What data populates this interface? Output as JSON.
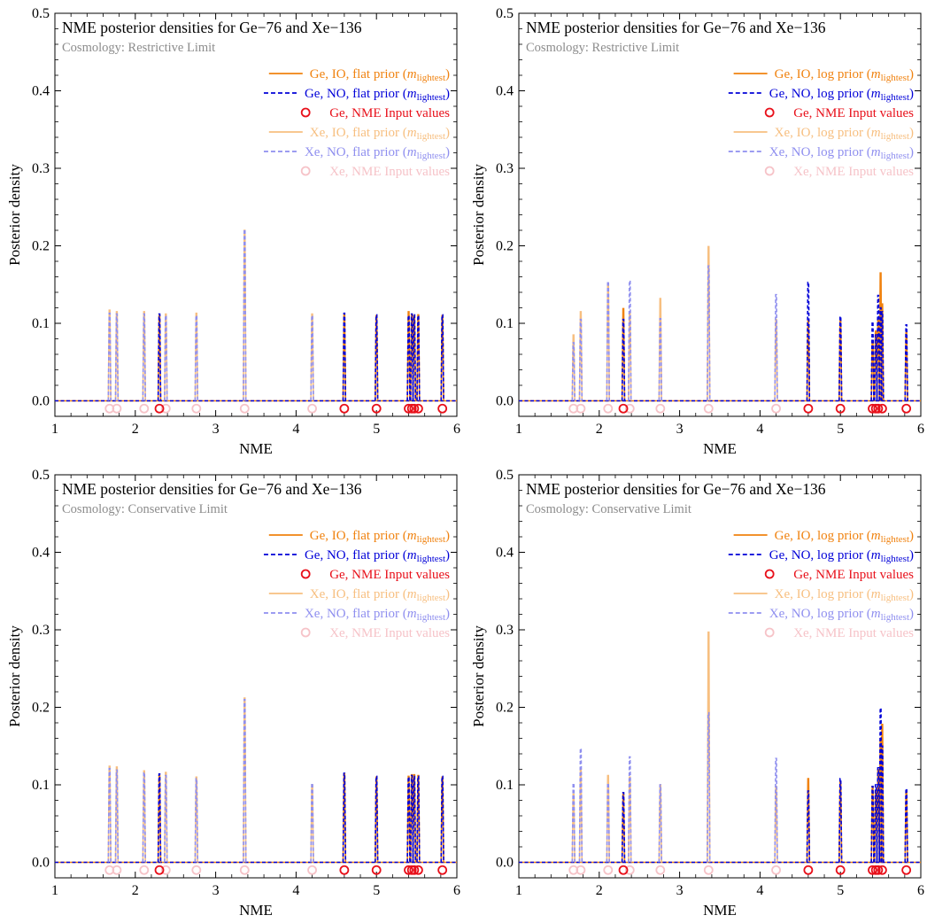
{
  "colors": {
    "ge_io": "#f0820f",
    "ge_no": "#0000d8",
    "ge_input": "#e8101a",
    "xe_io": "#f7bf80",
    "xe_no": "#8f8fef",
    "xe_input": "#f6c3c8",
    "subtitle": "#8c8c8c"
  },
  "chart_data": [
    {
      "type": "line",
      "title": "NME posterior densities for Ge−76 and Xe−136",
      "subtitle": "Cosmology: Restrictive Limit",
      "xlabel": "NME",
      "ylabel": "Posterior density",
      "xlim": [
        1,
        6
      ],
      "ylim": [
        -0.02,
        0.5
      ],
      "xticks": [
        "1",
        "2",
        "3",
        "4",
        "5",
        "6"
      ],
      "yticks": [
        "0.0",
        "0.1",
        "0.2",
        "0.3",
        "0.4",
        "0.5"
      ],
      "legend_position": "top-right",
      "legend": [
        {
          "text": "Ge, IO, flat prior (",
          "sym": "m",
          "sub": "lightest",
          "close": ")",
          "kind": "solid",
          "color": "#f0820f"
        },
        {
          "text": "Ge, NO, flat prior (",
          "sym": "m",
          "sub": "lightest",
          "close": ")",
          "kind": "dash",
          "color": "#0000d8"
        },
        {
          "text": "Ge, NME Input values",
          "sym": "",
          "sub": "",
          "close": "",
          "kind": "circle",
          "color": "#e8101a"
        },
        {
          "text": "Xe, IO, flat prior (",
          "sym": "m",
          "sub": "lightest",
          "close": ")",
          "kind": "solid",
          "color": "#f7bf80"
        },
        {
          "text": "Xe, NO, flat prior (",
          "sym": "m",
          "sub": "lightest",
          "close": ")",
          "kind": "dash",
          "color": "#8f8fef"
        },
        {
          "text": "Xe, NME Input values",
          "sym": "",
          "sub": "",
          "close": "",
          "kind": "circle",
          "color": "#f6c3c8"
        }
      ],
      "series": [
        {
          "name": "Xe, IO, flat prior",
          "x": [
            1.68,
            1.77,
            2.11,
            2.38,
            2.76,
            3.36,
            4.2
          ],
          "y": [
            0.117,
            0.115,
            0.115,
            0.112,
            0.113,
            0.22,
            0.112
          ]
        },
        {
          "name": "Xe, NO, flat prior",
          "x": [
            1.68,
            1.77,
            2.11,
            2.38,
            2.76,
            3.36,
            4.2
          ],
          "y": [
            0.113,
            0.112,
            0.112,
            0.11,
            0.11,
            0.221,
            0.11
          ]
        },
        {
          "name": "Ge, IO, flat prior",
          "x": [
            2.3,
            4.6,
            5.0,
            5.4,
            5.44,
            5.47,
            5.52,
            5.82
          ],
          "y": [
            0.11,
            0.111,
            0.11,
            0.115,
            0.111,
            0.11,
            0.111,
            0.11
          ]
        },
        {
          "name": "Ge, NO, flat prior",
          "x": [
            2.3,
            4.6,
            5.0,
            5.4,
            5.44,
            5.47,
            5.52,
            5.82
          ],
          "y": [
            0.112,
            0.113,
            0.111,
            0.11,
            0.112,
            0.111,
            0.11,
            0.111
          ]
        }
      ],
      "inputs": {
        "Ge": [
          2.3,
          4.6,
          5.0,
          5.4,
          5.44,
          5.47,
          5.52,
          5.82
        ],
        "Xe": [
          1.68,
          1.77,
          2.11,
          2.38,
          2.76,
          3.36,
          4.2
        ],
        "y": -0.01
      }
    },
    {
      "type": "line",
      "title": "NME posterior densities for Ge−76 and Xe−136",
      "subtitle": "Cosmology: Restrictive Limit",
      "xlabel": "NME",
      "ylabel": "Posterior density",
      "xlim": [
        1,
        6
      ],
      "ylim": [
        -0.02,
        0.5
      ],
      "xticks": [
        "1",
        "2",
        "3",
        "4",
        "5",
        "6"
      ],
      "yticks": [
        "0.0",
        "0.1",
        "0.2",
        "0.3",
        "0.4",
        "0.5"
      ],
      "legend_position": "top-right",
      "legend": [
        {
          "text": "Ge, IO, log prior (",
          "sym": "m",
          "sub": "lightest",
          "close": ")",
          "kind": "solid",
          "color": "#f0820f"
        },
        {
          "text": "Ge, NO, log prior (",
          "sym": "m",
          "sub": "lightest",
          "close": ")",
          "kind": "dash",
          "color": "#0000d8"
        },
        {
          "text": "Ge, NME Input values",
          "sym": "",
          "sub": "",
          "close": "",
          "kind": "circle",
          "color": "#e8101a"
        },
        {
          "text": "Xe, IO, log prior (",
          "sym": "m",
          "sub": "lightest",
          "close": ")",
          "kind": "solid",
          "color": "#f7bf80"
        },
        {
          "text": "Xe, NO, log prior (",
          "sym": "m",
          "sub": "lightest",
          "close": ")",
          "kind": "dash",
          "color": "#8f8fef"
        },
        {
          "text": "Xe, NME Input values",
          "sym": "",
          "sub": "",
          "close": "",
          "kind": "circle",
          "color": "#f6c3c8"
        }
      ],
      "series": [
        {
          "name": "Xe, IO, log prior",
          "x": [
            1.68,
            1.77,
            2.11,
            2.38,
            2.76,
            3.36,
            4.2
          ],
          "y": [
            0.085,
            0.115,
            0.152,
            0.115,
            0.132,
            0.199,
            0.105
          ]
        },
        {
          "name": "Xe, NO, log prior",
          "x": [
            1.68,
            1.77,
            2.11,
            2.38,
            2.76,
            3.36,
            4.2
          ],
          "y": [
            0.075,
            0.105,
            0.154,
            0.155,
            0.106,
            0.174,
            0.137
          ]
        },
        {
          "name": "Ge, IO, log prior",
          "x": [
            2.3,
            4.6,
            5.0,
            5.4,
            5.44,
            5.47,
            5.5,
            5.52,
            5.82
          ],
          "y": [
            0.119,
            0.103,
            0.103,
            0.078,
            0.09,
            0.105,
            0.165,
            0.125,
            0.088
          ]
        },
        {
          "name": "Ge, NO, log prior",
          "x": [
            2.3,
            4.6,
            5.0,
            5.4,
            5.44,
            5.47,
            5.5,
            5.52,
            5.82
          ],
          "y": [
            0.105,
            0.153,
            0.109,
            0.102,
            0.085,
            0.136,
            0.12,
            0.115,
            0.098
          ]
        }
      ],
      "inputs": {
        "Ge": [
          2.3,
          4.6,
          5.0,
          5.4,
          5.44,
          5.47,
          5.52,
          5.82
        ],
        "Xe": [
          1.68,
          1.77,
          2.11,
          2.38,
          2.76,
          3.36,
          4.2
        ],
        "y": -0.01
      }
    },
    {
      "type": "line",
      "title": "NME posterior densities for Ge−76 and Xe−136",
      "subtitle": "Cosmology: Conservative Limit",
      "xlabel": "NME",
      "ylabel": "Posterior density",
      "xlim": [
        1,
        6
      ],
      "ylim": [
        -0.02,
        0.5
      ],
      "xticks": [
        "1",
        "2",
        "3",
        "4",
        "5",
        "6"
      ],
      "yticks": [
        "0.0",
        "0.1",
        "0.2",
        "0.3",
        "0.4",
        "0.5"
      ],
      "legend_position": "top-right",
      "legend": [
        {
          "text": "Ge, IO, flat prior (",
          "sym": "m",
          "sub": "lightest",
          "close": ")",
          "kind": "solid",
          "color": "#f0820f"
        },
        {
          "text": "Ge, NO, flat prior (",
          "sym": "m",
          "sub": "lightest",
          "close": ")",
          "kind": "dash",
          "color": "#0000d8"
        },
        {
          "text": "Ge, NME Input values",
          "sym": "",
          "sub": "",
          "close": "",
          "kind": "circle",
          "color": "#e8101a"
        },
        {
          "text": "Xe, IO, flat prior (",
          "sym": "m",
          "sub": "lightest",
          "close": ")",
          "kind": "solid",
          "color": "#f7bf80"
        },
        {
          "text": "Xe, NO, flat prior (",
          "sym": "m",
          "sub": "lightest",
          "close": ")",
          "kind": "dash",
          "color": "#8f8fef"
        },
        {
          "text": "Xe, NME Input values",
          "sym": "",
          "sub": "",
          "close": "",
          "kind": "circle",
          "color": "#f6c3c8"
        }
      ],
      "series": [
        {
          "name": "Xe, IO, flat prior",
          "x": [
            1.68,
            1.77,
            2.11,
            2.38,
            2.76,
            3.36,
            4.2
          ],
          "y": [
            0.124,
            0.123,
            0.118,
            0.116,
            0.11,
            0.212,
            0.1
          ]
        },
        {
          "name": "Xe, NO, flat prior",
          "x": [
            1.68,
            1.77,
            2.11,
            2.38,
            2.76,
            3.36,
            4.2
          ],
          "y": [
            0.121,
            0.119,
            0.116,
            0.112,
            0.108,
            0.21,
            0.102
          ]
        },
        {
          "name": "Ge, IO, flat prior",
          "x": [
            2.3,
            4.6,
            5.0,
            5.4,
            5.44,
            5.47,
            5.52,
            5.82
          ],
          "y": [
            0.112,
            0.114,
            0.11,
            0.111,
            0.113,
            0.113,
            0.112,
            0.11
          ]
        },
        {
          "name": "Ge, NO, flat prior",
          "x": [
            2.3,
            4.6,
            5.0,
            5.4,
            5.44,
            5.47,
            5.52,
            5.82
          ],
          "y": [
            0.114,
            0.115,
            0.111,
            0.11,
            0.112,
            0.111,
            0.111,
            0.111
          ]
        }
      ],
      "inputs": {
        "Ge": [
          2.3,
          4.6,
          5.0,
          5.4,
          5.44,
          5.47,
          5.52,
          5.82
        ],
        "Xe": [
          1.68,
          1.77,
          2.11,
          2.38,
          2.76,
          3.36,
          4.2
        ],
        "y": -0.01
      }
    },
    {
      "type": "line",
      "title": "NME posterior densities for Ge−76 and Xe−136",
      "subtitle": "Cosmology: Conservative Limit",
      "xlabel": "NME",
      "ylabel": "Posterior density",
      "xlim": [
        1,
        6
      ],
      "ylim": [
        -0.02,
        0.5
      ],
      "xticks": [
        "1",
        "2",
        "3",
        "4",
        "5",
        "6"
      ],
      "yticks": [
        "0.0",
        "0.1",
        "0.2",
        "0.3",
        "0.4",
        "0.5"
      ],
      "legend_position": "top-right",
      "legend": [
        {
          "text": "Ge, IO, log prior (",
          "sym": "m",
          "sub": "lightest",
          "close": ")",
          "kind": "solid",
          "color": "#f0820f"
        },
        {
          "text": "Ge, NO, log prior (",
          "sym": "m",
          "sub": "lightest",
          "close": ")",
          "kind": "dash",
          "color": "#0000d8"
        },
        {
          "text": "Ge, NME Input values",
          "sym": "",
          "sub": "",
          "close": "",
          "kind": "circle",
          "color": "#e8101a"
        },
        {
          "text": "Xe, IO, log prior (",
          "sym": "m",
          "sub": "lightest",
          "close": ")",
          "kind": "solid",
          "color": "#f7bf80"
        },
        {
          "text": "Xe, NO, log prior (",
          "sym": "m",
          "sub": "lightest",
          "close": ")",
          "kind": "dash",
          "color": "#8f8fef"
        },
        {
          "text": "Xe, NME Input values",
          "sym": "",
          "sub": "",
          "close": "",
          "kind": "circle",
          "color": "#f6c3c8"
        }
      ],
      "series": [
        {
          "name": "Xe, IO, log prior",
          "x": [
            1.68,
            1.77,
            2.11,
            2.38,
            2.76,
            3.36,
            4.2
          ],
          "y": [
            0.088,
            0.12,
            0.112,
            0.11,
            0.1,
            0.297,
            0.098
          ]
        },
        {
          "name": "Xe, NO, log prior",
          "x": [
            1.68,
            1.77,
            2.11,
            2.38,
            2.76,
            3.36,
            4.2
          ],
          "y": [
            0.102,
            0.147,
            0.102,
            0.136,
            0.1,
            0.193,
            0.134
          ]
        },
        {
          "name": "Ge, IO, log prior",
          "x": [
            2.3,
            4.6,
            5.0,
            5.4,
            5.44,
            5.47,
            5.5,
            5.52,
            5.82
          ],
          "y": [
            0.088,
            0.108,
            0.104,
            0.098,
            0.092,
            0.12,
            0.16,
            0.178,
            0.092
          ]
        },
        {
          "name": "Ge, NO, log prior",
          "x": [
            2.3,
            4.6,
            5.0,
            5.4,
            5.44,
            5.47,
            5.5,
            5.52,
            5.82
          ],
          "y": [
            0.09,
            0.092,
            0.108,
            0.098,
            0.1,
            0.122,
            0.199,
            0.15,
            0.095
          ]
        }
      ],
      "inputs": {
        "Ge": [
          2.3,
          4.6,
          5.0,
          5.4,
          5.44,
          5.47,
          5.52,
          5.82
        ],
        "Xe": [
          1.68,
          1.77,
          2.11,
          2.38,
          2.76,
          3.36,
          4.2
        ],
        "y": -0.01
      }
    }
  ]
}
